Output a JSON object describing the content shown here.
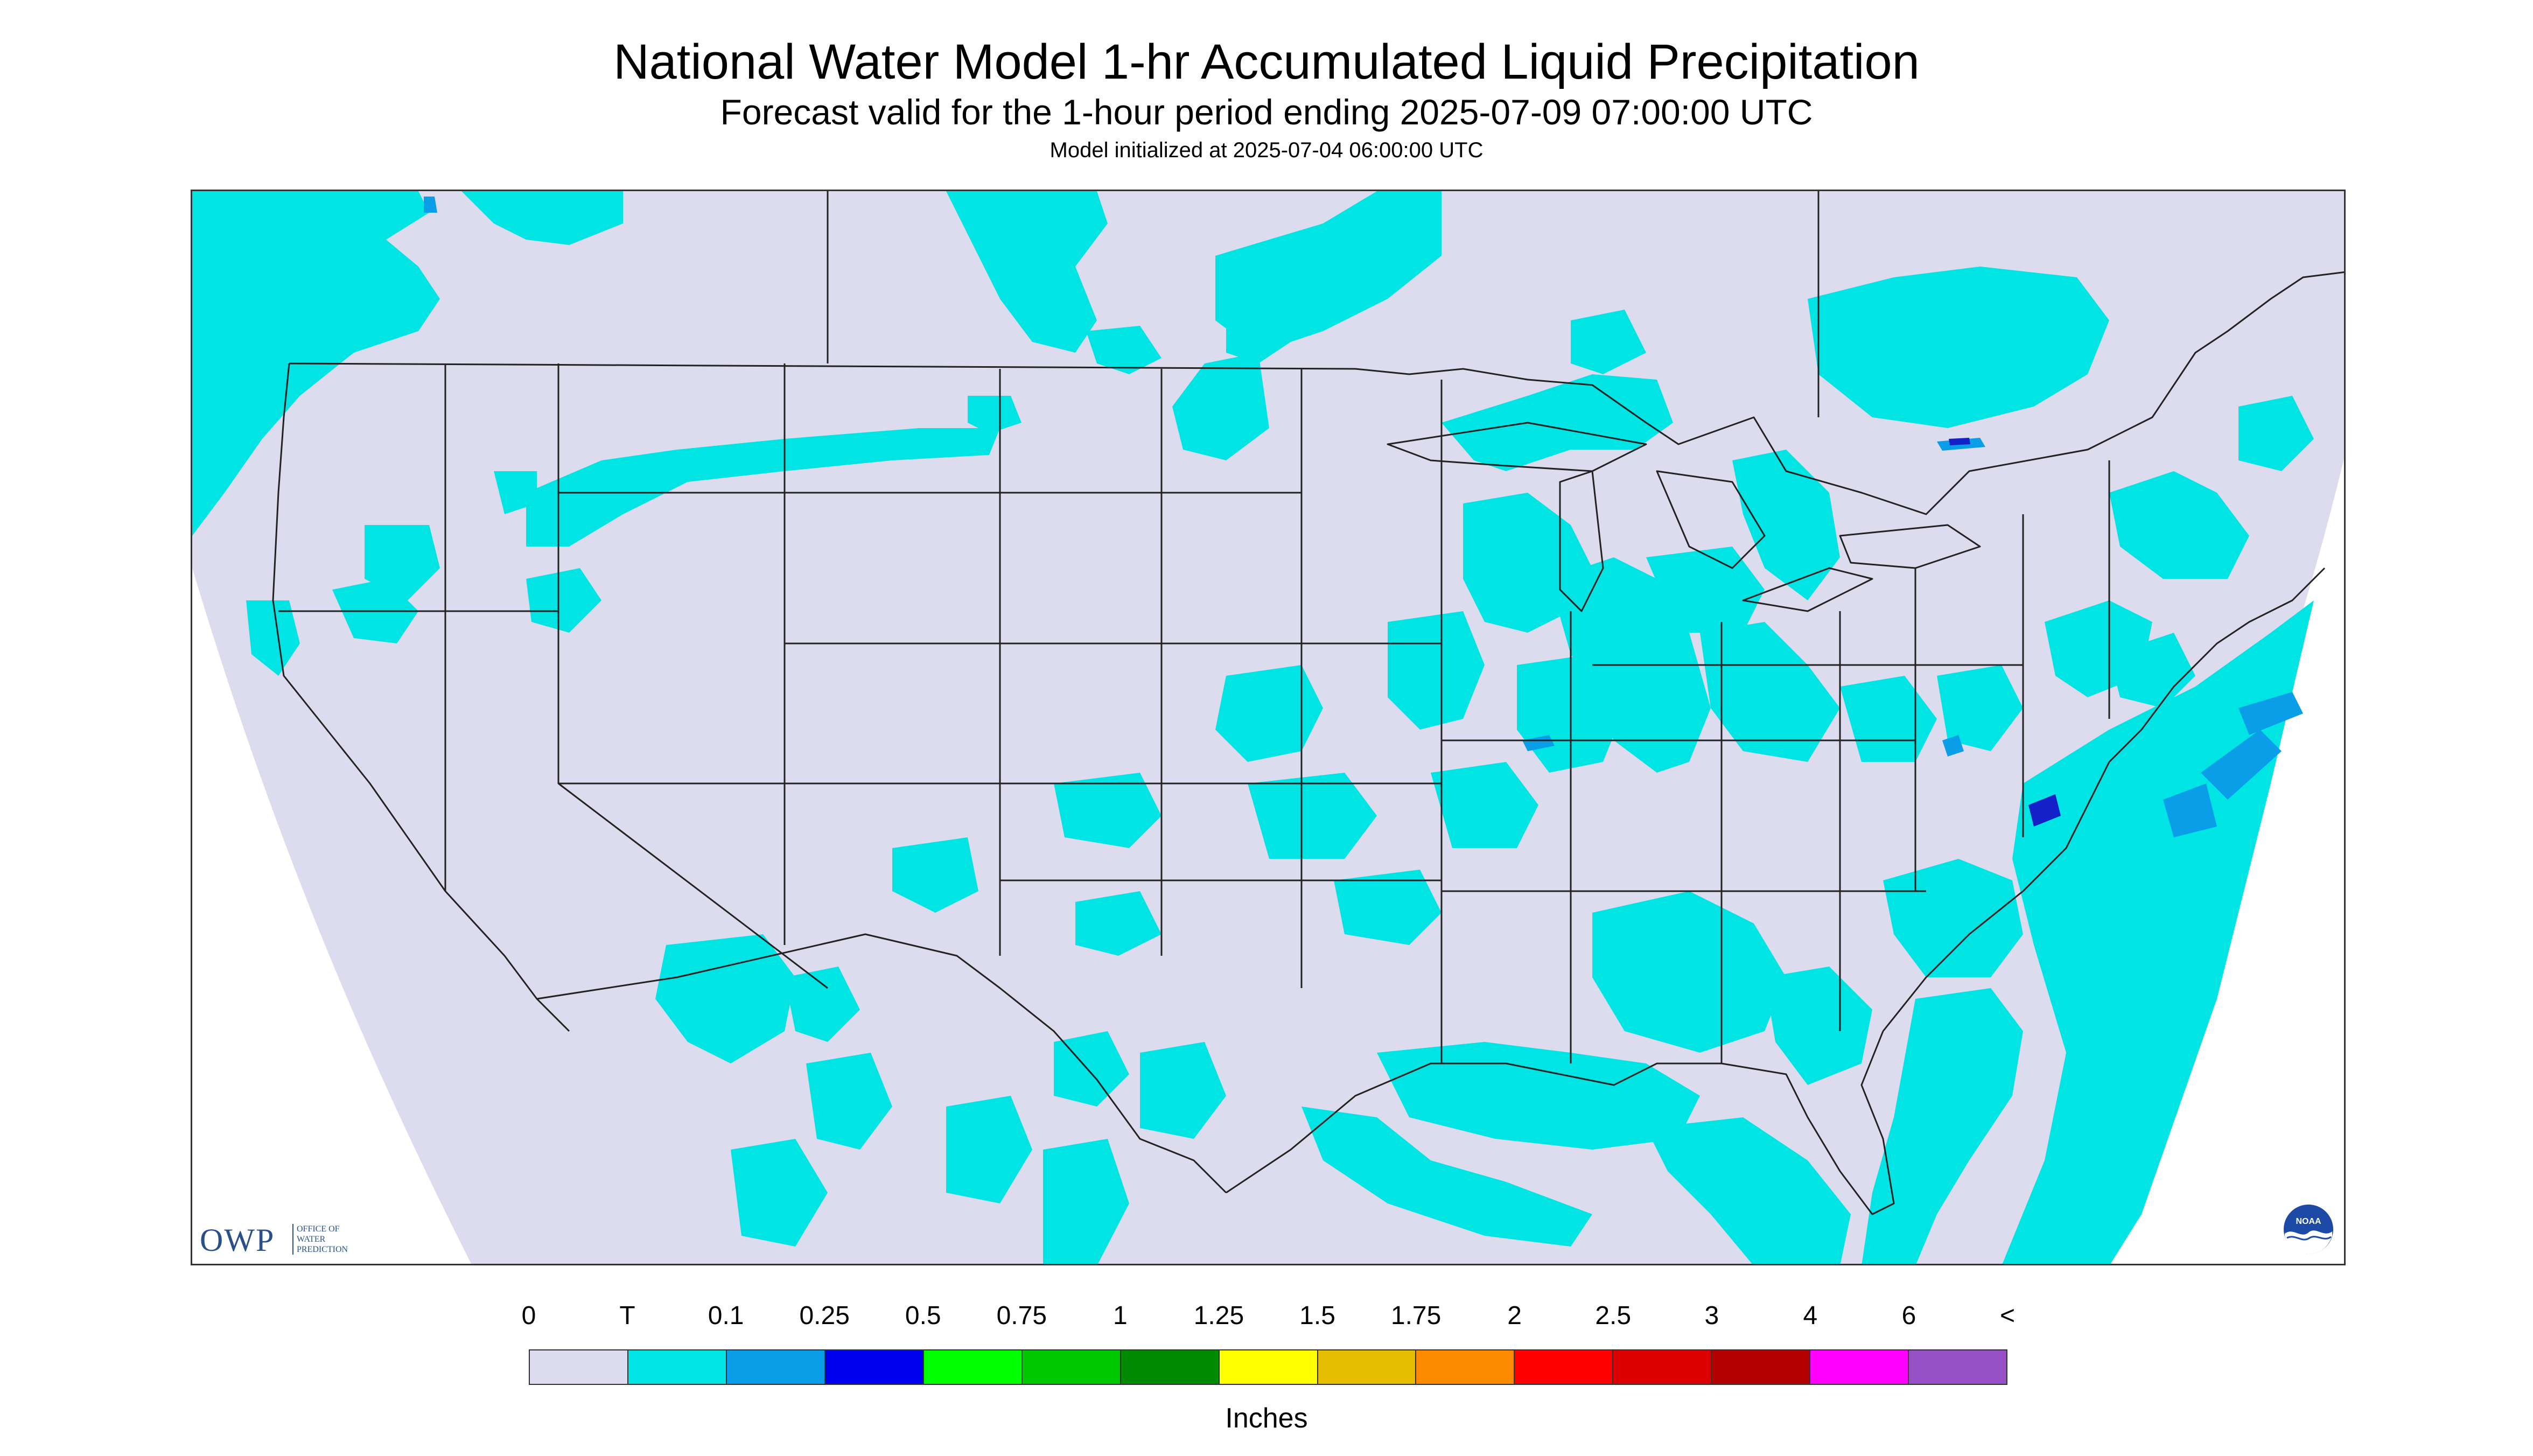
{
  "header": {
    "title": "National Water Model 1-hr Accumulated Liquid Precipitation",
    "subtitle": "Forecast valid for the 1-hour period ending 2025-07-09 07:00:00 UTC",
    "init": "Model initialized at 2025-07-04 06:00:00 UTC"
  },
  "map": {
    "background_color": "#dcdcee",
    "precip_color": "#00e4e4",
    "heavier_color": "#0a9de8",
    "heaviest_color": "#1420c8",
    "boundary_color": "#222222"
  },
  "logos": {
    "owp_name": "OWP",
    "owp_line1": "OFFICE OF",
    "owp_line2": "WATER",
    "owp_line3": "PREDICTION",
    "noaa_name": "NOAA"
  },
  "legend": {
    "tick_labels": [
      "0",
      "T",
      "0.1",
      "0.25",
      "0.5",
      "0.75",
      "1",
      "1.25",
      "1.5",
      "1.75",
      "2",
      "2.5",
      "3",
      "4",
      "6",
      "<"
    ],
    "colors": [
      "#dcdcee",
      "#00e4e4",
      "#0a9de8",
      "#0000ee",
      "#00ff00",
      "#00c800",
      "#008a00",
      "#ffff00",
      "#e6be00",
      "#ff8c00",
      "#ff0000",
      "#dc0000",
      "#b40000",
      "#ff00ff",
      "#9650c8"
    ],
    "units": "Inches"
  }
}
